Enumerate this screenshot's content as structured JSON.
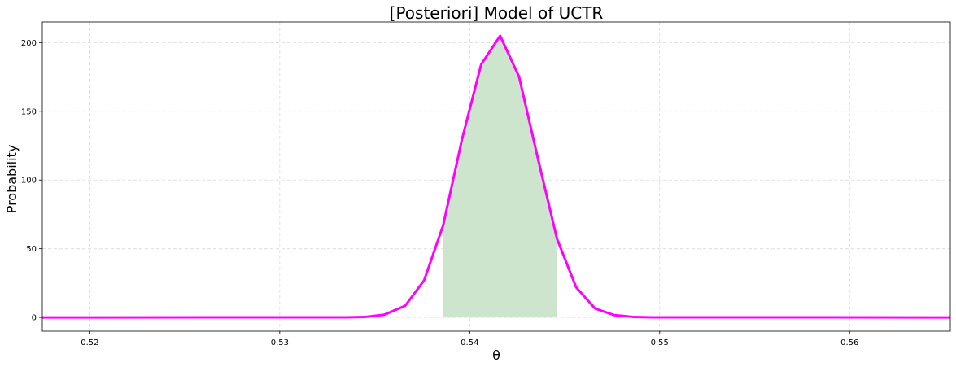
{
  "chart_data": {
    "type": "line",
    "title": "[Posteriori] Model of UCTR",
    "xlabel": "θ",
    "ylabel": "Probability",
    "xlim": [
      0.5175,
      0.5653
    ],
    "ylim": [
      -10,
      215
    ],
    "x_ticks": [
      0.52,
      0.53,
      0.54,
      0.55,
      0.56
    ],
    "x_tick_labels": [
      "0.52",
      "0.53",
      "0.54",
      "0.55",
      "0.56"
    ],
    "y_ticks": [
      0,
      50,
      100,
      150,
      200
    ],
    "y_tick_labels": [
      "0",
      "50",
      "100",
      "150",
      "200"
    ],
    "grid": true,
    "series": [
      {
        "color": "#ff00ff",
        "x": [
          0.5175,
          0.5335,
          0.5345,
          0.5355,
          0.5366,
          0.5376,
          0.5386,
          0.5396,
          0.5406,
          0.5416,
          0.5426,
          0.5436,
          0.5446,
          0.5456,
          0.5466,
          0.5476,
          0.5486,
          0.5496,
          0.5653
        ],
        "y": [
          0,
          0.1,
          0.4,
          2,
          8.5,
          27,
          67,
          130,
          184,
          205,
          175,
          115,
          57,
          22,
          6.5,
          1.7,
          0.4,
          0.1,
          0
        ]
      }
    ],
    "shaded_interval": {
      "color": "#cde5cd",
      "x_start": 0.5386,
      "x_end": 0.5446
    }
  }
}
